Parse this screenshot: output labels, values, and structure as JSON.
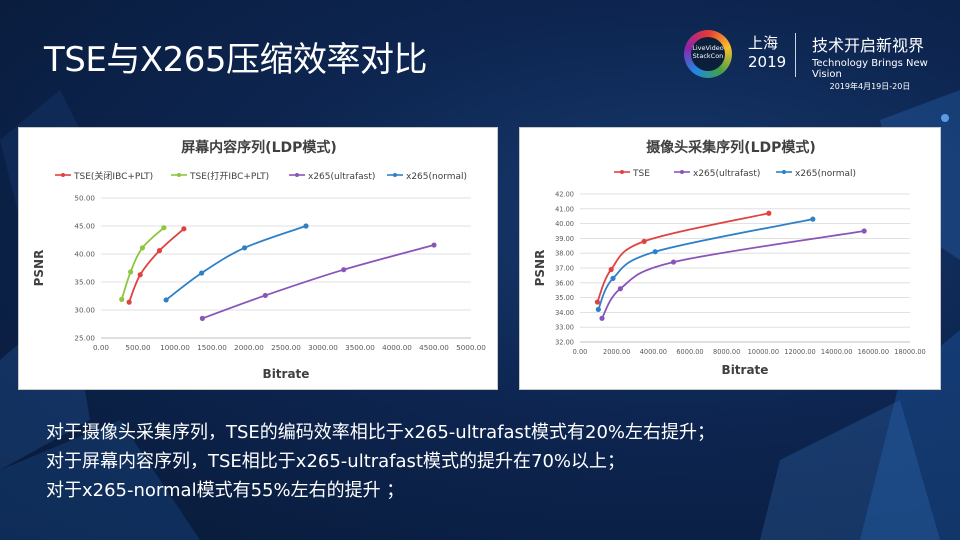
{
  "page": {
    "title": "TSE与X265压缩效率对比",
    "event": {
      "logo_text": [
        "LiveVideo",
        "StackCon"
      ],
      "city": "上海",
      "year": "2019",
      "tagline_zh": "技术开启新视界",
      "tagline_en": "Technology Brings New Vision",
      "date": "2019年4月19日-20日"
    },
    "body_lines": [
      "对于摄像头采集序列，TSE的编码效率相比于x265-ultrafast模式有20%左右提升；",
      "对于屏幕内容序列，TSE相比于x265-ultrafast模式的提升在70%以上；",
      "对于x265-normal模式有55%左右的提升 ；"
    ]
  },
  "chart_data": [
    {
      "type": "line",
      "title": "屏幕内容序列(LDP模式)",
      "xlabel": "Bitrate",
      "ylabel": "PSNR",
      "xlim": [
        0,
        5000
      ],
      "ylim": [
        25,
        50
      ],
      "xticks": [
        "0.00",
        "500.00",
        "1000.00",
        "1500.00",
        "2000.00",
        "2500.00",
        "3000.00",
        "3500.00",
        "4000.00",
        "4500.00",
        "5000.00"
      ],
      "yticks": [
        "25.00",
        "30.00",
        "35.00",
        "40.00",
        "45.00",
        "50.00"
      ],
      "grid": true,
      "legend_position": "top",
      "series": [
        {
          "name": "TSE(关闭IBC+PLT)",
          "color": "#e04141",
          "x": [
            380,
            530,
            790,
            1120
          ],
          "y": [
            31.4,
            36.3,
            40.6,
            44.5
          ]
        },
        {
          "name": "TSE(打开IBC+PLT)",
          "color": "#8dc63f",
          "x": [
            280,
            400,
            560,
            850
          ],
          "y": [
            31.9,
            36.8,
            41.1,
            44.7
          ]
        },
        {
          "name": "x265(ultrafast)",
          "color": "#8a55b8",
          "x": [
            1370,
            2220,
            3280,
            4500
          ],
          "y": [
            28.5,
            32.6,
            37.2,
            41.6
          ]
        },
        {
          "name": "x265(normal)",
          "color": "#2e80c8",
          "x": [
            880,
            1360,
            1940,
            2770
          ],
          "y": [
            31.8,
            36.6,
            41.1,
            45.0
          ]
        }
      ]
    },
    {
      "type": "line",
      "title": "摄像头采集序列(LDP模式)",
      "xlabel": "Bitrate",
      "ylabel": "PSNR",
      "xlim": [
        0,
        18000
      ],
      "ylim": [
        32,
        42
      ],
      "xticks": [
        "0.00",
        "2000.00",
        "4000.00",
        "6000.00",
        "8000.00",
        "10000.00",
        "12000.00",
        "14000.00",
        "16000.00",
        "18000.00"
      ],
      "yticks": [
        "32.00",
        "33.00",
        "34.00",
        "35.00",
        "36.00",
        "37.00",
        "38.00",
        "39.00",
        "40.00",
        "41.00",
        "42.00"
      ],
      "grid": true,
      "legend_position": "top",
      "series": [
        {
          "name": "TSE",
          "color": "#e04141",
          "x": [
            950,
            1700,
            3500,
            10300
          ],
          "y": [
            34.7,
            36.9,
            38.8,
            40.7
          ]
        },
        {
          "name": "x265(ultrafast)",
          "color": "#8a55b8",
          "x": [
            1200,
            2200,
            5100,
            15500
          ],
          "y": [
            33.6,
            35.6,
            37.4,
            39.5
          ]
        },
        {
          "name": "x265(normal)",
          "color": "#2e80c8",
          "x": [
            1000,
            1800,
            4100,
            12700
          ],
          "y": [
            34.2,
            36.3,
            38.1,
            40.3
          ]
        }
      ]
    }
  ]
}
